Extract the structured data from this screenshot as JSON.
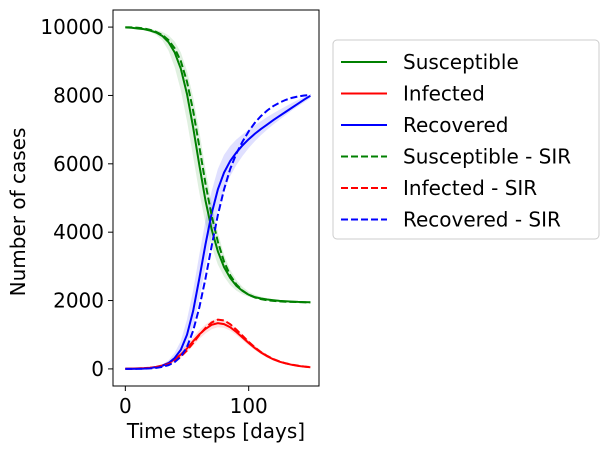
{
  "chart_data": {
    "type": "line",
    "xlabel": "Time steps [days]",
    "ylabel": "Number of cases",
    "xlim": [
      -10,
      157
    ],
    "ylim": [
      -500,
      10500
    ],
    "xticks": [
      0,
      100
    ],
    "yticks": [
      0,
      2000,
      4000,
      6000,
      8000,
      10000
    ],
    "grid": false,
    "legend_position": "outside-right",
    "x": [
      0,
      5,
      10,
      15,
      20,
      25,
      30,
      35,
      40,
      45,
      50,
      55,
      60,
      65,
      70,
      75,
      80,
      85,
      90,
      95,
      100,
      105,
      110,
      115,
      120,
      125,
      130,
      135,
      140,
      145,
      150
    ],
    "series": [
      {
        "name": "Susceptible",
        "color": "#008000",
        "dash": "solid",
        "values": [
          9990,
          9980,
          9960,
          9940,
          9900,
          9840,
          9740,
          9560,
          9260,
          8780,
          8040,
          7060,
          5960,
          4920,
          4080,
          3440,
          2980,
          2660,
          2430,
          2280,
          2170,
          2100,
          2060,
          2030,
          2010,
          1990,
          1980,
          1970,
          1960,
          1955,
          1950
        ],
        "band_lower": [
          9985,
          9970,
          9945,
          9915,
          9860,
          9770,
          9610,
          9310,
          8830,
          8150,
          7250,
          6200,
          5150,
          4250,
          3580,
          3050,
          2700,
          2450,
          2290,
          2180,
          2110,
          2060,
          2025,
          2005,
          1990,
          1975,
          1965,
          1955,
          1945,
          1940,
          1935
        ],
        "band_upper": [
          9995,
          9990,
          9975,
          9965,
          9940,
          9910,
          9860,
          9760,
          9580,
          9260,
          8720,
          7950,
          6950,
          5850,
          4850,
          4000,
          3340,
          2900,
          2600,
          2400,
          2260,
          2170,
          2110,
          2070,
          2040,
          2020,
          2000,
          1990,
          1980,
          1970,
          1965
        ]
      },
      {
        "name": "Infected",
        "color": "#ff0000",
        "dash": "solid",
        "values": [
          5,
          8,
          14,
          22,
          35,
          60,
          100,
          170,
          280,
          420,
          600,
          810,
          1010,
          1170,
          1290,
          1340,
          1310,
          1220,
          1080,
          920,
          760,
          610,
          480,
          370,
          280,
          210,
          160,
          120,
          90,
          65,
          50
        ],
        "band_lower": [
          3,
          5,
          9,
          15,
          22,
          40,
          70,
          120,
          210,
          330,
          490,
          680,
          880,
          1040,
          1160,
          1220,
          1200,
          1120,
          990,
          840,
          690,
          550,
          430,
          330,
          250,
          190,
          140,
          105,
          80,
          58,
          44
        ],
        "band_upper": [
          7,
          11,
          19,
          30,
          48,
          80,
          130,
          220,
          360,
          520,
          720,
          940,
          1140,
          1300,
          1420,
          1470,
          1430,
          1330,
          1180,
          1010,
          840,
          680,
          540,
          420,
          320,
          240,
          180,
          140,
          105,
          78,
          60
        ]
      },
      {
        "name": "Recovered",
        "color": "#0000ff",
        "dash": "solid",
        "values": [
          0,
          2,
          6,
          10,
          25,
          50,
          90,
          170,
          320,
          560,
          1000,
          1700,
          2650,
          3650,
          4550,
          5250,
          5740,
          6080,
          6330,
          6540,
          6720,
          6880,
          7020,
          7150,
          7280,
          7400,
          7520,
          7640,
          7760,
          7880,
          7990
        ],
        "band_lower": [
          0,
          1,
          4,
          7,
          18,
          35,
          60,
          110,
          210,
          380,
          700,
          1250,
          2050,
          3000,
          3900,
          4650,
          5220,
          5640,
          5960,
          6230,
          6460,
          6660,
          6840,
          7000,
          7150,
          7290,
          7430,
          7560,
          7680,
          7800,
          7920
        ],
        "band_upper": [
          0,
          3,
          9,
          14,
          34,
          70,
          130,
          250,
          470,
          820,
          1450,
          2300,
          3350,
          4350,
          5200,
          5850,
          6260,
          6520,
          6710,
          6860,
          7000,
          7130,
          7250,
          7370,
          7480,
          7580,
          7680,
          7780,
          7870,
          7950,
          8030
        ]
      },
      {
        "name": "Susceptible - SIR",
        "color": "#008000",
        "dash": "dashed",
        "values": [
          9995,
          9990,
          9980,
          9960,
          9920,
          9860,
          9770,
          9620,
          9380,
          9000,
          8400,
          7550,
          6500,
          5420,
          4480,
          3720,
          3140,
          2740,
          2470,
          2290,
          2170,
          2090,
          2040,
          2010,
          1990,
          1975,
          1965,
          1960,
          1955,
          1950,
          1945
        ]
      },
      {
        "name": "Infected - SIR",
        "color": "#ff0000",
        "dash": "dashed",
        "values": [
          4,
          6,
          11,
          18,
          30,
          50,
          85,
          140,
          230,
          360,
          540,
          760,
          990,
          1200,
          1360,
          1440,
          1420,
          1310,
          1150,
          970,
          790,
          630,
          490,
          380,
          290,
          220,
          165,
          125,
          95,
          70,
          52
        ]
      },
      {
        "name": "Recovered - SIR",
        "color": "#0000ff",
        "dash": "dashed",
        "values": [
          0,
          1,
          3,
          6,
          15,
          30,
          60,
          110,
          200,
          360,
          640,
          1120,
          1800,
          2650,
          3600,
          4500,
          5250,
          5850,
          6300,
          6650,
          6950,
          7200,
          7400,
          7560,
          7690,
          7790,
          7870,
          7930,
          7970,
          8000,
          8010
        ]
      }
    ]
  }
}
